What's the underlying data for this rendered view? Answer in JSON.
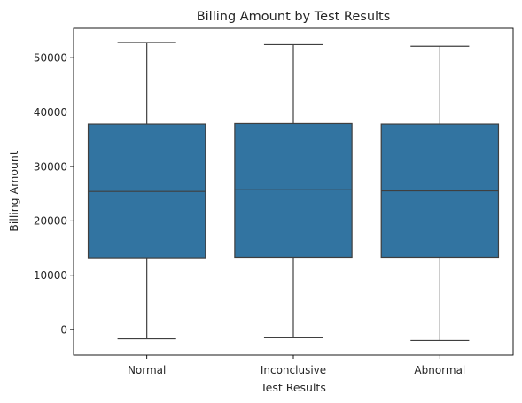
{
  "chart_data": {
    "type": "box",
    "title": "Billing Amount by Test Results",
    "xlabel": "Test Results",
    "ylabel": "Billing Amount",
    "categories": [
      "Normal",
      "Inconclusive",
      "Abnormal"
    ],
    "boxes": [
      {
        "category": "Normal",
        "whisker_low": -1700,
        "q1": 13200,
        "median": 25400,
        "q3": 37800,
        "whisker_high": 52800
      },
      {
        "category": "Inconclusive",
        "whisker_low": -1500,
        "q1": 13300,
        "median": 25700,
        "q3": 37900,
        "whisker_high": 52400
      },
      {
        "category": "Abnormal",
        "whisker_low": -2000,
        "q1": 13300,
        "median": 25500,
        "q3": 37800,
        "whisker_high": 52100
      }
    ],
    "ylim": [
      -4700,
      55400
    ],
    "yticks": [
      0,
      10000,
      20000,
      30000,
      40000,
      50000
    ],
    "ytick_labels": [
      "0",
      "10000",
      "20000",
      "30000",
      "40000",
      "50000"
    ],
    "grid": false,
    "colors": {
      "box_fill": "#3274a1",
      "line": "#3f3f3f",
      "axis": "#000000"
    }
  }
}
